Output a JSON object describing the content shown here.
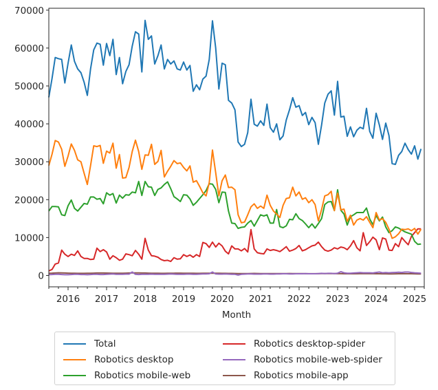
{
  "chart_data": {
    "type": "line",
    "title": "",
    "xlabel": "Month",
    "ylabel": "",
    "x_start": "2015-07",
    "x_end": "2025-03",
    "frequency": "monthly",
    "xlim": [
      2015.5,
      2025.25
    ],
    "ylim": [
      -3000,
      70500
    ],
    "yticks": [
      0,
      10000,
      20000,
      30000,
      40000,
      50000,
      60000,
      70000
    ],
    "ytick_labels": [
      "0",
      "10000",
      "20000",
      "30000",
      "40000",
      "50000",
      "60000",
      "70000"
    ],
    "xticks": [
      2016,
      2017,
      2018,
      2019,
      2020,
      2021,
      2022,
      2023,
      2024,
      2025
    ],
    "xtick_labels": [
      "2016",
      "2017",
      "2018",
      "2019",
      "2020",
      "2021",
      "2022",
      "2023",
      "2024",
      "2025"
    ],
    "grid": false,
    "legend_position": "bottom-center",
    "series": [
      {
        "name": "Total",
        "color": "#1f77b4",
        "values": [
          47000,
          52000,
          57500,
          57200,
          57000,
          50800,
          56000,
          60800,
          56500,
          54500,
          53500,
          51000,
          47500,
          54500,
          59500,
          61300,
          61000,
          55500,
          61200,
          58000,
          62300,
          53000,
          57500,
          50600,
          53800,
          55600,
          60500,
          64300,
          63700,
          53700,
          67300,
          62300,
          63200,
          55800,
          58000,
          60800,
          54500,
          57000,
          55800,
          56600,
          54500,
          54200,
          56300,
          54200,
          55400,
          48600,
          50300,
          49000,
          51800,
          52600,
          57000,
          67200,
          60000,
          49200,
          56000,
          55600,
          46200,
          45500,
          43700,
          35200,
          34000,
          34600,
          37700,
          46500,
          39900,
          39400,
          40800,
          39600,
          45200,
          39000,
          37800,
          40000,
          35800,
          36800,
          41000,
          43700,
          46900,
          44400,
          44800,
          42200,
          43000,
          39800,
          41700,
          40300,
          34600,
          39700,
          45500,
          47800,
          48700,
          42300,
          51200,
          41800,
          42000,
          36700,
          39200,
          36600,
          38300,
          39100,
          38700,
          44100,
          38000,
          36200,
          42800,
          39700,
          35900,
          40200,
          36900,
          29500,
          29300,
          31700,
          32700,
          34900,
          33200,
          32000,
          34200,
          30700,
          33400
        ]
      },
      {
        "name": "Robotics desktop",
        "color": "#ff7f0e",
        "values": [
          29000,
          32000,
          35600,
          35200,
          33300,
          28800,
          31500,
          34700,
          33000,
          30500,
          30000,
          27000,
          24000,
          29000,
          34200,
          34000,
          34300,
          29600,
          32800,
          32300,
          34900,
          28300,
          31900,
          25700,
          25800,
          28500,
          32700,
          35700,
          32700,
          28000,
          31800,
          31700,
          34600,
          29300,
          30100,
          33000,
          26000,
          27500,
          28800,
          30300,
          29500,
          29700,
          28500,
          27600,
          28900,
          24600,
          25000,
          23500,
          21800,
          21000,
          24500,
          33100,
          27100,
          21000,
          25000,
          26500,
          23200,
          23300,
          22600,
          16000,
          13900,
          14100,
          16000,
          18100,
          18900,
          17700,
          18300,
          17700,
          21200,
          18500,
          17000,
          16200,
          15300,
          18500,
          20300,
          20500,
          23300,
          21000,
          22000,
          20100,
          20500,
          19200,
          20000,
          18700,
          14400,
          17400,
          21000,
          21300,
          22200,
          17100,
          21700,
          17300,
          17500,
          14300,
          15900,
          13300,
          14600,
          15000,
          14600,
          15500,
          14000,
          12600,
          16600,
          14600,
          15000,
          14000,
          12200,
          9800,
          10200,
          11000,
          12200,
          12100,
          12300,
          11800,
          12400,
          10900,
          12200
        ]
      },
      {
        "name": "Robotics mobile-web",
        "color": "#2ca02c",
        "values": [
          17000,
          18200,
          18200,
          18100,
          16000,
          15800,
          18400,
          19900,
          17700,
          17000,
          18000,
          19000,
          18800,
          20700,
          20700,
          20100,
          20300,
          18900,
          21800,
          21200,
          21600,
          19100,
          21200,
          20400,
          21300,
          21200,
          22000,
          21800,
          24800,
          21100,
          24800,
          23400,
          23300,
          21100,
          22700,
          23100,
          24000,
          24700,
          22900,
          20800,
          20200,
          19500,
          21300,
          21200,
          20200,
          18500,
          19300,
          20300,
          21300,
          22400,
          24200,
          24100,
          22700,
          19200,
          22000,
          21900,
          17000,
          13800,
          13700,
          12400,
          12700,
          12800,
          13800,
          14500,
          13000,
          14500,
          16000,
          15700,
          16000,
          13800,
          13800,
          17400,
          12900,
          12600,
          13100,
          14800,
          14700,
          16300,
          15000,
          14500,
          13600,
          12600,
          13600,
          12500,
          13700,
          15000,
          18700,
          19400,
          19500,
          17100,
          22600,
          17200,
          16200,
          13300,
          15500,
          16000,
          16600,
          16600,
          16600,
          17800,
          14900,
          13400,
          15800,
          14400,
          15400,
          12800,
          11300,
          11800,
          12800,
          12500,
          12000,
          11500,
          11200,
          10900,
          9000,
          8200,
          8300
        ]
      },
      {
        "name": "Robotics desktop-spider",
        "color": "#d62728",
        "values": [
          1200,
          1600,
          3000,
          3300,
          6700,
          5600,
          5000,
          5600,
          5300,
          6500,
          5000,
          4500,
          4500,
          4200,
          4300,
          7200,
          6300,
          6800,
          6200,
          4300,
          5200,
          4700,
          4000,
          4300,
          5700,
          5500,
          5200,
          6600,
          5600,
          4300,
          9800,
          6700,
          5200,
          5100,
          4800,
          4200,
          3900,
          4000,
          3700,
          4700,
          4300,
          4400,
          5500,
          5000,
          5400,
          4800,
          5500,
          5000,
          8700,
          8400,
          7400,
          8800,
          7500,
          8500,
          7800,
          6400,
          5700,
          7800,
          7000,
          7000,
          6500,
          7100,
          6200,
          12100,
          7000,
          6000,
          5800,
          5700,
          7000,
          6600,
          6800,
          6600,
          6300,
          6900,
          7600,
          6400,
          6700,
          7100,
          7900,
          6500,
          6800,
          7300,
          7800,
          8000,
          8800,
          7600,
          6700,
          6400,
          6700,
          7300,
          7000,
          7500,
          7300,
          6800,
          7800,
          9200,
          7300,
          6500,
          11300,
          7900,
          8900,
          10100,
          9400,
          6800,
          9900,
          9600,
          6700,
          6600,
          8400,
          7600,
          10000,
          9000,
          8100,
          10300,
          11300,
          12300,
          12300
        ]
      },
      {
        "name": "Robotics mobile-web-spider",
        "color": "#9467bd",
        "values": [
          200,
          250,
          300,
          300,
          250,
          200,
          200,
          250,
          300,
          300,
          250,
          250,
          200,
          250,
          300,
          300,
          250,
          250,
          300,
          350,
          400,
          300,
          300,
          300,
          350,
          350,
          900,
          300,
          250,
          300,
          300,
          300,
          350,
          300,
          300,
          300,
          300,
          350,
          400,
          350,
          300,
          300,
          300,
          350,
          350,
          300,
          300,
          350,
          400,
          400,
          450,
          900,
          400,
          350,
          350,
          400,
          350,
          300,
          300,
          100,
          300,
          350,
          400,
          400,
          350,
          350,
          350,
          400,
          400,
          350,
          350,
          400,
          400,
          450,
          450,
          400,
          400,
          450,
          450,
          450,
          500,
          450,
          450,
          450,
          500,
          550,
          500,
          550,
          550,
          500,
          600,
          1000,
          700,
          600,
          600,
          650,
          700,
          750,
          700,
          700,
          700,
          650,
          800,
          900,
          700,
          750,
          700,
          750,
          800,
          850,
          800,
          900,
          900,
          800,
          700,
          650,
          600
        ]
      },
      {
        "name": "Robotics mobile-app",
        "color": "#8c564b",
        "values": [
          600,
          620,
          650,
          700,
          680,
          650,
          620,
          600,
          580,
          560,
          550,
          560,
          580,
          600,
          620,
          640,
          650,
          640,
          630,
          620,
          600,
          590,
          580,
          600,
          620,
          640,
          660,
          680,
          670,
          650,
          640,
          620,
          600,
          580,
          570,
          560,
          560,
          570,
          580,
          600,
          620,
          610,
          600,
          590,
          580,
          570,
          560,
          560,
          570,
          580,
          600,
          620,
          600,
          580,
          560,
          550,
          540,
          530,
          520,
          510,
          500,
          500,
          510,
          520,
          530,
          520,
          510,
          500,
          500,
          490,
          480,
          480,
          490,
          500,
          510,
          520,
          510,
          500,
          490,
          480,
          470,
          470,
          460,
          460,
          470,
          480,
          490,
          500,
          490,
          480,
          470,
          460,
          450,
          450,
          440,
          440,
          450,
          460,
          470,
          480,
          470,
          460,
          450,
          440,
          430,
          430,
          420,
          420,
          430,
          440,
          450,
          460,
          450,
          440,
          430,
          420,
          420
        ]
      }
    ]
  }
}
